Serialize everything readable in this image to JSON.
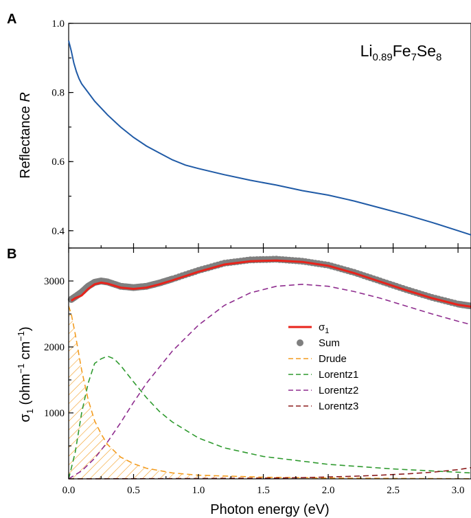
{
  "chart_data": [
    {
      "type": "line",
      "panel_label": "A",
      "ylabel_prefix": "Reflectance ",
      "ylabel_symbol": "R",
      "annotation": {
        "main": "Li",
        "sub1": "0.89",
        "mid": "Fe",
        "sub2": "7",
        "tail": "Se",
        "sub3": "8"
      },
      "xlim": [
        0,
        3.1
      ],
      "ylim": [
        0.35,
        1.0
      ],
      "yticks": [
        "1.0",
        "0.8",
        "0.6",
        "0.4"
      ],
      "ytick_values": [
        1.0,
        0.8,
        0.6,
        0.4
      ],
      "series": [
        {
          "color": "#1f5aa6",
          "x": [
            0.0,
            0.02,
            0.04,
            0.06,
            0.08,
            0.1,
            0.15,
            0.2,
            0.3,
            0.4,
            0.5,
            0.6,
            0.7,
            0.8,
            0.9,
            1.0,
            1.2,
            1.4,
            1.6,
            1.8,
            2.0,
            2.2,
            2.4,
            2.6,
            2.8,
            3.0,
            3.1
          ],
          "y": [
            0.95,
            0.92,
            0.885,
            0.86,
            0.84,
            0.825,
            0.8,
            0.775,
            0.735,
            0.7,
            0.67,
            0.645,
            0.625,
            0.605,
            0.59,
            0.58,
            0.562,
            0.546,
            0.532,
            0.516,
            0.503,
            0.486,
            0.466,
            0.446,
            0.424,
            0.4,
            0.388
          ]
        }
      ]
    },
    {
      "type": "line",
      "panel_label": "B",
      "ylabel_sigma": "σ",
      "ylabel_sub": "1",
      "ylabel_units_open": " (ohm",
      "ylabel_exp1": "−1",
      "ylabel_units_mid": " cm",
      "ylabel_exp2": "−1",
      "ylabel_units_close": ")",
      "xlabel": "Photon energy (eV)",
      "xlim": [
        0,
        3.1
      ],
      "ylim": [
        0,
        3500
      ],
      "xticks": [
        "0.0",
        "0.5",
        "1.0",
        "1.5",
        "2.0",
        "2.5",
        "3.0"
      ],
      "xtick_values": [
        0.0,
        0.5,
        1.0,
        1.5,
        2.0,
        2.5,
        3.0
      ],
      "yticks": [
        "3000",
        "2000",
        "1000"
      ],
      "ytick_values": [
        3000,
        2000,
        1000
      ],
      "legend_placement": "center-right",
      "series": [
        {
          "name": "σ",
          "name_sub": "1",
          "color": "#e8231b",
          "style": "solid",
          "x": [
            0.02,
            0.05,
            0.1,
            0.15,
            0.2,
            0.25,
            0.3,
            0.4,
            0.5,
            0.6,
            0.7,
            0.8,
            1.0,
            1.2,
            1.4,
            1.6,
            1.8,
            2.0,
            2.2,
            2.4,
            2.6,
            2.8,
            3.0,
            3.1
          ],
          "y": [
            2700,
            2740,
            2780,
            2880,
            2950,
            2975,
            2960,
            2900,
            2880,
            2900,
            2950,
            3010,
            3140,
            3250,
            3300,
            3310,
            3290,
            3230,
            3120,
            2990,
            2860,
            2740,
            2640,
            2610
          ]
        },
        {
          "name": "Sum",
          "color": "#7f7f7f",
          "style": "dots",
          "x": [
            0.02,
            0.05,
            0.1,
            0.15,
            0.2,
            0.25,
            0.3,
            0.4,
            0.5,
            0.6,
            0.7,
            0.8,
            1.0,
            1.2,
            1.4,
            1.6,
            1.8,
            2.0,
            2.2,
            2.4,
            2.6,
            2.8,
            3.0,
            3.1
          ],
          "y": [
            2720,
            2760,
            2830,
            2920,
            2980,
            3000,
            2985,
            2920,
            2900,
            2920,
            2970,
            3030,
            3160,
            3270,
            3320,
            3330,
            3300,
            3240,
            3130,
            3000,
            2870,
            2750,
            2650,
            2620
          ]
        },
        {
          "name": "Drude",
          "color": "#f39c1f",
          "style": "dashed",
          "hatched": true,
          "x": [
            0.0,
            0.02,
            0.05,
            0.1,
            0.15,
            0.2,
            0.25,
            0.3,
            0.4,
            0.5,
            0.6,
            0.8,
            1.0,
            1.5,
            2.0,
            2.5,
            3.0,
            3.1
          ],
          "y": [
            2620,
            2500,
            2200,
            1650,
            1200,
            880,
            680,
            520,
            330,
            230,
            160,
            90,
            55,
            25,
            12,
            6,
            3,
            2
          ]
        },
        {
          "name": "Lorentz1",
          "color": "#2e9a2e",
          "style": "dashed",
          "x": [
            0.0,
            0.05,
            0.1,
            0.15,
            0.2,
            0.25,
            0.3,
            0.35,
            0.4,
            0.5,
            0.6,
            0.7,
            0.8,
            1.0,
            1.2,
            1.5,
            2.0,
            2.5,
            3.0,
            3.1
          ],
          "y": [
            0,
            400,
            1000,
            1450,
            1750,
            1820,
            1860,
            1820,
            1720,
            1470,
            1230,
            1020,
            860,
            620,
            470,
            340,
            220,
            150,
            100,
            90
          ]
        },
        {
          "name": "Lorentz2",
          "color": "#8e2c8e",
          "style": "dashed",
          "x": [
            0.0,
            0.1,
            0.2,
            0.3,
            0.4,
            0.5,
            0.6,
            0.8,
            1.0,
            1.2,
            1.4,
            1.6,
            1.8,
            2.0,
            2.2,
            2.4,
            2.6,
            2.8,
            3.0,
            3.1
          ],
          "y": [
            0,
            120,
            310,
            560,
            850,
            1160,
            1450,
            1940,
            2330,
            2630,
            2820,
            2920,
            2950,
            2920,
            2840,
            2740,
            2620,
            2500,
            2390,
            2340
          ]
        },
        {
          "name": "Lorentz3",
          "color": "#8b1a1a",
          "style": "dashed",
          "x": [
            0.0,
            0.5,
            1.0,
            1.5,
            1.8,
            2.0,
            2.2,
            2.4,
            2.6,
            2.8,
            3.0,
            3.1
          ],
          "y": [
            0,
            2,
            5,
            10,
            18,
            28,
            40,
            55,
            75,
            100,
            140,
            170
          ]
        }
      ]
    }
  ]
}
